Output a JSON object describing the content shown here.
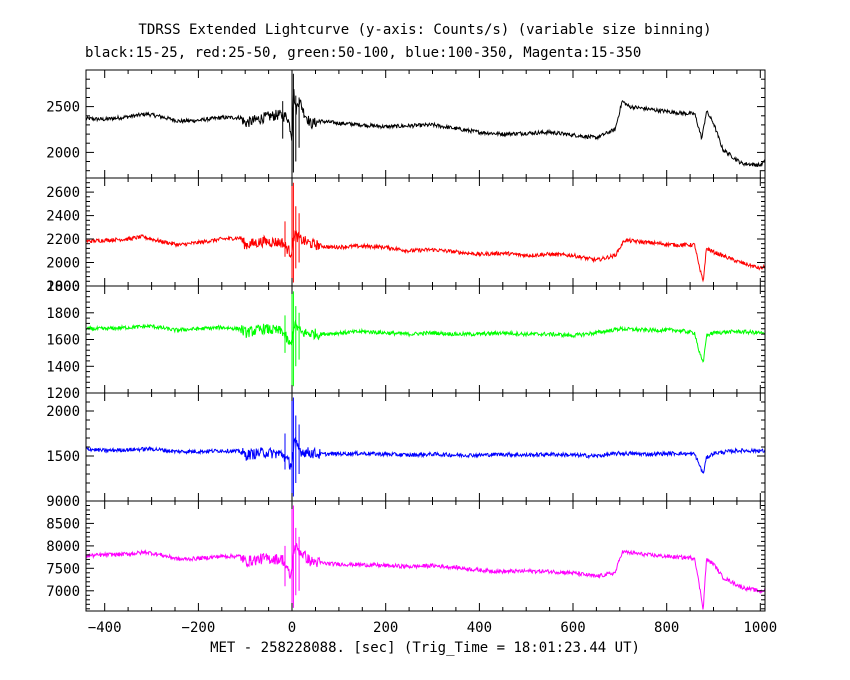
{
  "chart_data": {
    "type": "line",
    "title": "TDRSS Extended Lightcurve (y-axis: Counts/s) (variable size binning)",
    "subtitle": "black:15-25, red:25-50, green:50-100, blue:100-350, Magenta:15-350",
    "xlabel": "MET - 258228088. [sec] (Trig_Time = 18:01:23.44 UT)",
    "xlim": [
      -440,
      1010
    ],
    "x_ticks": [
      -400,
      -200,
      0,
      200,
      400,
      600,
      800,
      1000
    ],
    "x_tick_labels": [
      "−400",
      "−200",
      "0",
      "200",
      "400",
      "600",
      "800",
      "1000"
    ],
    "grid": false,
    "panels": [
      {
        "name": "black:15-25",
        "color": "#000000",
        "ylim": [
          1720,
          2900
        ],
        "y_ticks": [
          2000,
          2500
        ],
        "y_tick_labels": [
          "2000",
          "2500"
        ],
        "points": [
          [
            -440,
            2370
          ],
          [
            -400,
            2360
          ],
          [
            -350,
            2390
          ],
          [
            -310,
            2420
          ],
          [
            -280,
            2390
          ],
          [
            -240,
            2340
          ],
          [
            -200,
            2350
          ],
          [
            -150,
            2380
          ],
          [
            -110,
            2380
          ],
          [
            -100,
            2320
          ],
          [
            -60,
            2380
          ],
          [
            -30,
            2410
          ],
          [
            -10,
            2390
          ],
          [
            -3,
            2250
          ],
          [
            0,
            2150
          ],
          [
            3,
            2700
          ],
          [
            8,
            2450
          ],
          [
            15,
            2580
          ],
          [
            25,
            2440
          ],
          [
            40,
            2310
          ],
          [
            60,
            2340
          ],
          [
            100,
            2320
          ],
          [
            150,
            2300
          ],
          [
            200,
            2280
          ],
          [
            250,
            2290
          ],
          [
            300,
            2300
          ],
          [
            350,
            2260
          ],
          [
            400,
            2220
          ],
          [
            450,
            2200
          ],
          [
            500,
            2210
          ],
          [
            550,
            2220
          ],
          [
            600,
            2190
          ],
          [
            650,
            2160
          ],
          [
            690,
            2250
          ],
          [
            705,
            2560
          ],
          [
            720,
            2500
          ],
          [
            780,
            2460
          ],
          [
            830,
            2430
          ],
          [
            860,
            2420
          ],
          [
            875,
            2150
          ],
          [
            885,
            2450
          ],
          [
            900,
            2320
          ],
          [
            920,
            2030
          ],
          [
            960,
            1880
          ],
          [
            1000,
            1860
          ],
          [
            1010,
            1900
          ]
        ],
        "spikes": [
          [
            0,
            1760,
            2880
          ],
          [
            3,
            1780,
            2860
          ],
          [
            8,
            1900,
            2620
          ],
          [
            15,
            2050,
            2600
          ],
          [
            -20,
            2150,
            2560
          ]
        ]
      },
      {
        "name": "red:25-50",
        "color": "#ff0000",
        "ylim": [
          1800,
          2720
        ],
        "y_ticks": [
          1800,
          2000,
          2200,
          2400,
          2600
        ],
        "y_tick_labels": [
          "1800",
          "2000",
          "2200",
          "2400",
          "2600"
        ],
        "points": [
          [
            -440,
            2180
          ],
          [
            -400,
            2190
          ],
          [
            -350,
            2200
          ],
          [
            -320,
            2220
          ],
          [
            -280,
            2180
          ],
          [
            -240,
            2150
          ],
          [
            -200,
            2170
          ],
          [
            -150,
            2200
          ],
          [
            -110,
            2210
          ],
          [
            -100,
            2150
          ],
          [
            -60,
            2180
          ],
          [
            -20,
            2170
          ],
          [
            -3,
            2080
          ],
          [
            0,
            2120
          ],
          [
            5,
            2250
          ],
          [
            15,
            2200
          ],
          [
            40,
            2160
          ],
          [
            80,
            2130
          ],
          [
            150,
            2140
          ],
          [
            200,
            2130
          ],
          [
            250,
            2100
          ],
          [
            300,
            2110
          ],
          [
            350,
            2090
          ],
          [
            400,
            2070
          ],
          [
            450,
            2080
          ],
          [
            500,
            2060
          ],
          [
            550,
            2070
          ],
          [
            600,
            2060
          ],
          [
            650,
            2020
          ],
          [
            690,
            2060
          ],
          [
            710,
            2190
          ],
          [
            760,
            2170
          ],
          [
            820,
            2150
          ],
          [
            860,
            2150
          ],
          [
            870,
            1950
          ],
          [
            878,
            1840
          ],
          [
            885,
            2120
          ],
          [
            900,
            2090
          ],
          [
            950,
            2010
          ],
          [
            1000,
            1950
          ],
          [
            1010,
            1960
          ]
        ],
        "spikes": [
          [
            0,
            1820,
            2720
          ],
          [
            3,
            1830,
            2680
          ],
          [
            8,
            1950,
            2480
          ],
          [
            15,
            2000,
            2420
          ],
          [
            -15,
            2050,
            2350
          ]
        ]
      },
      {
        "name": "green:50-100",
        "color": "#00ff00",
        "ylim": [
          1200,
          2000
        ],
        "y_ticks": [
          1200,
          1400,
          1600,
          1800,
          2000
        ],
        "y_tick_labels": [
          "1200",
          "1400",
          "1600",
          "1800",
          "2000"
        ],
        "points": [
          [
            -440,
            1680
          ],
          [
            -400,
            1680
          ],
          [
            -350,
            1690
          ],
          [
            -300,
            1700
          ],
          [
            -250,
            1670
          ],
          [
            -200,
            1680
          ],
          [
            -150,
            1690
          ],
          [
            -110,
            1680
          ],
          [
            -100,
            1650
          ],
          [
            -60,
            1680
          ],
          [
            -20,
            1660
          ],
          [
            -3,
            1550
          ],
          [
            0,
            1600
          ],
          [
            5,
            1720
          ],
          [
            20,
            1650
          ],
          [
            60,
            1640
          ],
          [
            150,
            1660
          ],
          [
            200,
            1650
          ],
          [
            250,
            1640
          ],
          [
            300,
            1650
          ],
          [
            350,
            1640
          ],
          [
            400,
            1640
          ],
          [
            450,
            1650
          ],
          [
            500,
            1640
          ],
          [
            550,
            1640
          ],
          [
            600,
            1630
          ],
          [
            650,
            1650
          ],
          [
            700,
            1680
          ],
          [
            760,
            1670
          ],
          [
            820,
            1670
          ],
          [
            860,
            1650
          ],
          [
            870,
            1500
          ],
          [
            878,
            1420
          ],
          [
            885,
            1630
          ],
          [
            900,
            1650
          ],
          [
            950,
            1660
          ],
          [
            1000,
            1650
          ],
          [
            1010,
            1640
          ]
        ],
        "spikes": [
          [
            0,
            1220,
            1990
          ],
          [
            3,
            1250,
            1960
          ],
          [
            8,
            1400,
            1850
          ],
          [
            15,
            1450,
            1800
          ],
          [
            -15,
            1500,
            1780
          ]
        ]
      },
      {
        "name": "blue:100-350",
        "color": "#0000ff",
        "ylim": [
          1000,
          2200
        ],
        "y_ticks": [
          1500,
          2000
        ],
        "y_tick_labels": [
          "1500",
          "2000"
        ],
        "points": [
          [
            -440,
            1580
          ],
          [
            -400,
            1560
          ],
          [
            -350,
            1570
          ],
          [
            -300,
            1580
          ],
          [
            -250,
            1550
          ],
          [
            -200,
            1550
          ],
          [
            -150,
            1560
          ],
          [
            -110,
            1550
          ],
          [
            -100,
            1510
          ],
          [
            -60,
            1540
          ],
          [
            -20,
            1520
          ],
          [
            -3,
            1400
          ],
          [
            0,
            1450
          ],
          [
            5,
            1650
          ],
          [
            20,
            1550
          ],
          [
            60,
            1520
          ],
          [
            150,
            1530
          ],
          [
            200,
            1520
          ],
          [
            250,
            1510
          ],
          [
            300,
            1520
          ],
          [
            350,
            1510
          ],
          [
            400,
            1510
          ],
          [
            450,
            1520
          ],
          [
            500,
            1510
          ],
          [
            550,
            1520
          ],
          [
            600,
            1510
          ],
          [
            650,
            1500
          ],
          [
            700,
            1530
          ],
          [
            760,
            1520
          ],
          [
            820,
            1530
          ],
          [
            860,
            1520
          ],
          [
            870,
            1400
          ],
          [
            878,
            1300
          ],
          [
            885,
            1480
          ],
          [
            900,
            1530
          ],
          [
            950,
            1560
          ],
          [
            1000,
            1560
          ],
          [
            1010,
            1550
          ]
        ],
        "spikes": [
          [
            0,
            1020,
            2200
          ],
          [
            3,
            1050,
            2150
          ],
          [
            8,
            1200,
            1950
          ],
          [
            15,
            1300,
            1850
          ],
          [
            -15,
            1350,
            1750
          ]
        ]
      },
      {
        "name": "Magenta:15-350",
        "color": "#ff00ff",
        "ylim": [
          6550,
          9000
        ],
        "y_ticks": [
          7000,
          7500,
          8000,
          8500,
          9000
        ],
        "y_tick_labels": [
          "7000",
          "7500",
          "8000",
          "8500",
          "9000"
        ],
        "points": [
          [
            -440,
            7780
          ],
          [
            -400,
            7800
          ],
          [
            -350,
            7820
          ],
          [
            -310,
            7860
          ],
          [
            -280,
            7800
          ],
          [
            -240,
            7700
          ],
          [
            -200,
            7720
          ],
          [
            -150,
            7770
          ],
          [
            -110,
            7770
          ],
          [
            -100,
            7650
          ],
          [
            -60,
            7720
          ],
          [
            -20,
            7700
          ],
          [
            -3,
            7300
          ],
          [
            0,
            7500
          ],
          [
            5,
            8000
          ],
          [
            15,
            7900
          ],
          [
            40,
            7650
          ],
          [
            80,
            7600
          ],
          [
            150,
            7580
          ],
          [
            200,
            7560
          ],
          [
            250,
            7540
          ],
          [
            300,
            7560
          ],
          [
            350,
            7520
          ],
          [
            400,
            7460
          ],
          [
            450,
            7430
          ],
          [
            500,
            7440
          ],
          [
            550,
            7430
          ],
          [
            600,
            7400
          ],
          [
            650,
            7320
          ],
          [
            690,
            7400
          ],
          [
            705,
            7870
          ],
          [
            760,
            7800
          ],
          [
            820,
            7750
          ],
          [
            860,
            7730
          ],
          [
            870,
            7100
          ],
          [
            878,
            6600
          ],
          [
            885,
            7700
          ],
          [
            900,
            7600
          ],
          [
            920,
            7300
          ],
          [
            960,
            7080
          ],
          [
            1000,
            6990
          ],
          [
            1010,
            7020
          ]
        ],
        "spikes": [
          [
            0,
            6580,
            8980
          ],
          [
            3,
            6620,
            8900
          ],
          [
            8,
            6900,
            8400
          ],
          [
            15,
            7000,
            8200
          ],
          [
            -15,
            7100,
            8000
          ]
        ]
      }
    ]
  }
}
